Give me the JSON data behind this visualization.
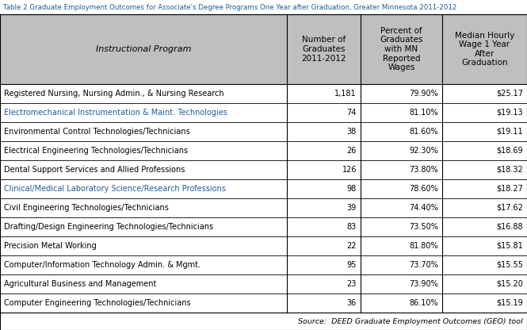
{
  "title": "Table 2 Graduate Employment Outcomes for Associate's Degree Programs One Year after Graduation, Greater Minnesota 2011-2012",
  "title_color": "#1F5C99",
  "header_bg": "#BFBFBF",
  "col_headers": [
    "Instructional Program",
    "Number of\nGraduates\n2011-2012",
    "Percent of\nGraduates\nwith MN\nReported\nWages",
    "Median Hourly\nWage 1 Year\nAfter\nGraduation"
  ],
  "rows": [
    {
      "program": "Registered Nursing, Nursing Admin., & Nursing Research",
      "grads": "1,181",
      "pct": "79.90%",
      "wage": "$25.17",
      "text_color": "#000000"
    },
    {
      "program": "Electromechanical Instrumentation & Maint. Technologies",
      "grads": "74",
      "pct": "81.10%",
      "wage": "$19.13",
      "text_color": "#1F5C99"
    },
    {
      "program": "Environmental Control Technologies/Technicians",
      "grads": "38",
      "pct": "81.60%",
      "wage": "$19.11",
      "text_color": "#000000"
    },
    {
      "program": "Electrical Engineering Technologies/Technicians",
      "grads": "26",
      "pct": "92.30%",
      "wage": "$18.69",
      "text_color": "#000000"
    },
    {
      "program": "Dental Support Services and Allied Professions",
      "grads": "126",
      "pct": "73.80%",
      "wage": "$18.32",
      "text_color": "#000000"
    },
    {
      "program": "Clinical/Medical Laboratory Science/Research Professions",
      "grads": "98",
      "pct": "78.60%",
      "wage": "$18.27",
      "text_color": "#1F5C99"
    },
    {
      "program": "Civil Engineering Technologies/Technicians",
      "grads": "39",
      "pct": "74.40%",
      "wage": "$17.62",
      "text_color": "#000000"
    },
    {
      "program": "Drafting/Design Engineering Technologies/Technicians",
      "grads": "83",
      "pct": "73.50%",
      "wage": "$16.88",
      "text_color": "#000000"
    },
    {
      "program": "Precision Metal Working",
      "grads": "22",
      "pct": "81.80%",
      "wage": "$15.81",
      "text_color": "#000000"
    },
    {
      "program": "Computer/Information Technology Admin. & Mgmt.",
      "grads": "95",
      "pct": "73.70%",
      "wage": "$15.55",
      "text_color": "#000000"
    },
    {
      "program": "Agricultural Business and Management",
      "grads": "23",
      "pct": "73.90%",
      "wage": "$15.20",
      "text_color": "#000000"
    },
    {
      "program": "Computer Engineering Technologies/Technicians",
      "grads": "36",
      "pct": "86.10%",
      "wage": "$15.19",
      "text_color": "#000000"
    }
  ],
  "source_text": "Source:  DEED Graduate Employment Outcomes (GEO) tool",
  "border_color": "#000000",
  "fig_width": 6.65,
  "fig_height": 4.16,
  "dpi": 100
}
